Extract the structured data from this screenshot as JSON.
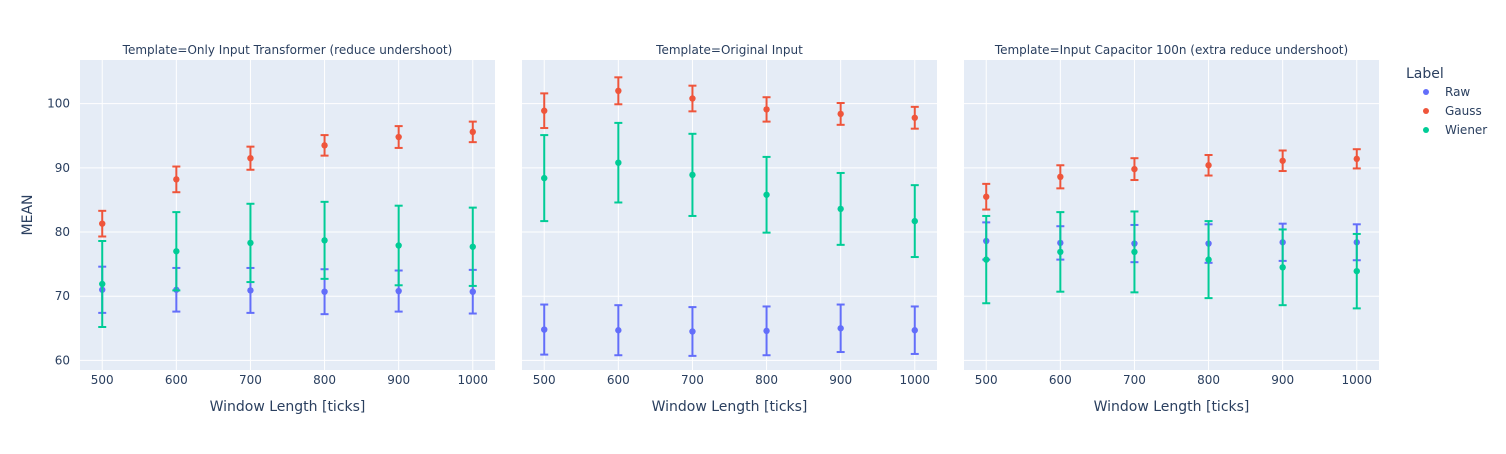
{
  "chart_data": {
    "type": "scatter",
    "ylabel": "MEAN",
    "ylim": [
      58.5,
      106.8
    ],
    "y_ticks": [
      60,
      70,
      80,
      90,
      100
    ],
    "x_ticks": [
      500,
      600,
      700,
      800,
      900,
      1000
    ],
    "xlim": [
      470,
      1030
    ],
    "grid": true,
    "legend": {
      "title": "Label",
      "position": "right",
      "entries": [
        {
          "name": "Raw",
          "color": "#636efa"
        },
        {
          "name": "Gauss",
          "color": "#ef553b"
        },
        {
          "name": "Wiener",
          "color": "#00cc96"
        }
      ]
    },
    "panels": [
      {
        "title": "Template=Only Input Transformer (reduce undershoot)",
        "xlabel": "Window Length [ticks]",
        "x": [
          500,
          600,
          700,
          800,
          900,
          1000
        ],
        "series": [
          {
            "name": "Raw",
            "y": [
              71.0,
              71.0,
              70.9,
              70.7,
              70.8,
              70.7
            ],
            "err": [
              3.6,
              3.4,
              3.5,
              3.5,
              3.2,
              3.4
            ]
          },
          {
            "name": "Gauss",
            "y": [
              81.3,
              88.2,
              91.5,
              93.5,
              94.8,
              95.6
            ],
            "err": [
              2.0,
              2.0,
              1.8,
              1.6,
              1.7,
              1.6
            ]
          },
          {
            "name": "Wiener",
            "y": [
              71.9,
              77.0,
              78.3,
              78.7,
              77.9,
              77.7
            ],
            "err": [
              6.7,
              6.1,
              6.1,
              6.0,
              6.2,
              6.1
            ]
          }
        ]
      },
      {
        "title": "Template=Original Input",
        "xlabel": "Window Length [ticks]",
        "x": [
          500,
          600,
          700,
          800,
          900,
          1000
        ],
        "series": [
          {
            "name": "Raw",
            "y": [
              64.8,
              64.7,
              64.5,
              64.6,
              65.0,
              64.7
            ],
            "err": [
              3.9,
              3.9,
              3.8,
              3.8,
              3.7,
              3.7
            ]
          },
          {
            "name": "Gauss",
            "y": [
              98.9,
              102.0,
              100.8,
              99.1,
              98.4,
              97.8
            ],
            "err": [
              2.7,
              2.1,
              2.0,
              1.9,
              1.7,
              1.7
            ]
          },
          {
            "name": "Wiener",
            "y": [
              88.4,
              90.8,
              88.9,
              85.8,
              83.6,
              81.7
            ],
            "err": [
              6.7,
              6.2,
              6.4,
              5.9,
              5.6,
              5.6
            ]
          }
        ]
      },
      {
        "title": "Template=Input Capacitor 100n (extra reduce undershoot)",
        "xlabel": "Window Length [ticks]",
        "x": [
          500,
          600,
          700,
          800,
          900,
          1000
        ],
        "series": [
          {
            "name": "Raw",
            "y": [
              78.6,
              78.3,
              78.2,
              78.2,
              78.4,
              78.4
            ],
            "err": [
              2.9,
              2.6,
              2.9,
              3.0,
              2.9,
              2.8
            ]
          },
          {
            "name": "Gauss",
            "y": [
              85.5,
              88.6,
              89.8,
              90.4,
              91.1,
              91.4
            ],
            "err": [
              2.0,
              1.8,
              1.7,
              1.6,
              1.6,
              1.5
            ]
          },
          {
            "name": "Wiener",
            "y": [
              75.7,
              76.9,
              76.9,
              75.7,
              74.5,
              73.9
            ],
            "err": [
              6.8,
              6.2,
              6.3,
              6.0,
              5.9,
              5.8
            ]
          }
        ]
      }
    ]
  }
}
